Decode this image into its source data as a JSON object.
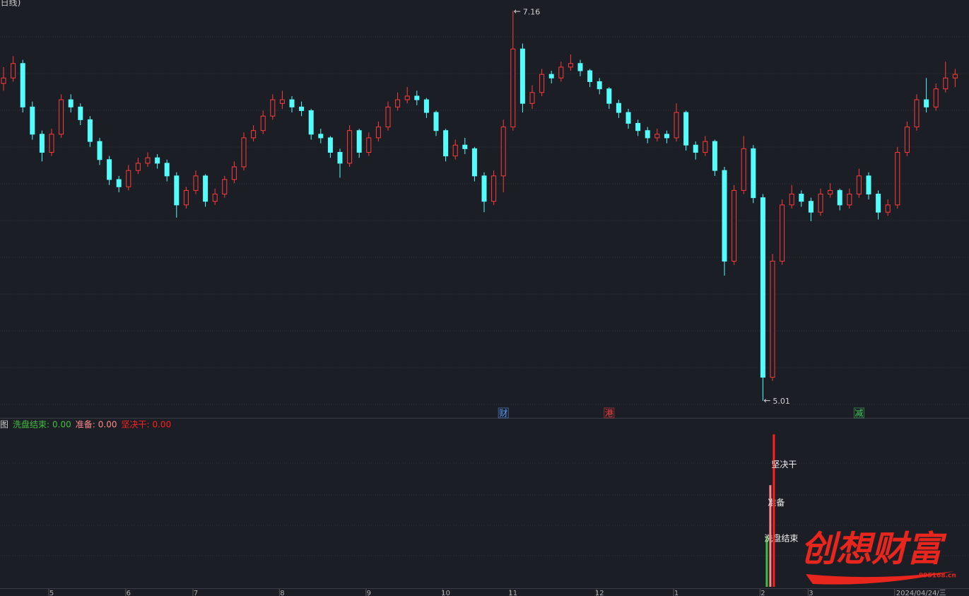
{
  "chart_data": [
    {
      "type": "candlestick",
      "title": "(日线)",
      "ylim": [
        4.92,
        7.22
      ],
      "up_color": "#ff3b3b",
      "down_color": "#54fcfc",
      "candles": [
        [
          6.76,
          6.85,
          6.72,
          6.79
        ],
        [
          6.79,
          6.91,
          6.77,
          6.87
        ],
        [
          6.87,
          6.89,
          6.6,
          6.63
        ],
        [
          6.63,
          6.66,
          6.45,
          6.48
        ],
        [
          6.48,
          6.5,
          6.33,
          6.38
        ],
        [
          6.38,
          6.51,
          6.36,
          6.48
        ],
        [
          6.48,
          6.7,
          6.46,
          6.67
        ],
        [
          6.67,
          6.7,
          6.6,
          6.63
        ],
        [
          6.63,
          6.65,
          6.53,
          6.56
        ],
        [
          6.56,
          6.58,
          6.41,
          6.44
        ],
        [
          6.44,
          6.46,
          6.31,
          6.34
        ],
        [
          6.34,
          6.36,
          6.2,
          6.23
        ],
        [
          6.23,
          6.25,
          6.16,
          6.19
        ],
        [
          6.19,
          6.31,
          6.17,
          6.28
        ],
        [
          6.28,
          6.35,
          6.26,
          6.32
        ],
        [
          6.32,
          6.38,
          6.3,
          6.35
        ],
        [
          6.35,
          6.37,
          6.29,
          6.32
        ],
        [
          6.32,
          6.34,
          6.22,
          6.25
        ],
        [
          6.25,
          6.27,
          6.02,
          6.09
        ],
        [
          6.09,
          6.19,
          6.07,
          6.17
        ],
        [
          6.17,
          6.28,
          6.15,
          6.25
        ],
        [
          6.25,
          6.26,
          6.08,
          6.11
        ],
        [
          6.11,
          6.18,
          6.09,
          6.15
        ],
        [
          6.15,
          6.25,
          6.13,
          6.23
        ],
        [
          6.23,
          6.33,
          6.21,
          6.3
        ],
        [
          6.3,
          6.49,
          6.28,
          6.46
        ],
        [
          6.46,
          6.53,
          6.44,
          6.5
        ],
        [
          6.5,
          6.61,
          6.48,
          6.58
        ],
        [
          6.58,
          6.7,
          6.56,
          6.67
        ],
        [
          6.65,
          6.72,
          6.62,
          6.67
        ],
        [
          6.67,
          6.69,
          6.6,
          6.63
        ],
        [
          6.63,
          6.66,
          6.58,
          6.61
        ],
        [
          6.61,
          6.62,
          6.45,
          6.48
        ],
        [
          6.48,
          6.51,
          6.43,
          6.46
        ],
        [
          6.46,
          6.47,
          6.35,
          6.38
        ],
        [
          6.38,
          6.4,
          6.24,
          6.32
        ],
        [
          6.32,
          6.53,
          6.3,
          6.5
        ],
        [
          6.5,
          6.51,
          6.35,
          6.38
        ],
        [
          6.38,
          6.49,
          6.36,
          6.46
        ],
        [
          6.46,
          6.55,
          6.44,
          6.52
        ],
        [
          6.52,
          6.66,
          6.5,
          6.63
        ],
        [
          6.63,
          6.71,
          6.61,
          6.67
        ],
        [
          6.67,
          6.74,
          6.65,
          6.69
        ],
        [
          6.69,
          6.72,
          6.64,
          6.67
        ],
        [
          6.67,
          6.68,
          6.57,
          6.6
        ],
        [
          6.6,
          6.61,
          6.47,
          6.5
        ],
        [
          6.5,
          6.51,
          6.33,
          6.36
        ],
        [
          6.36,
          6.45,
          6.34,
          6.42
        ],
        [
          6.42,
          6.46,
          6.37,
          6.4
        ],
        [
          6.4,
          6.41,
          6.22,
          6.25
        ],
        [
          6.25,
          6.27,
          6.05,
          6.11
        ],
        [
          6.11,
          6.28,
          6.09,
          6.25
        ],
        [
          6.25,
          6.56,
          6.16,
          6.52
        ],
        [
          6.52,
          7.16,
          6.5,
          6.95
        ],
        [
          6.95,
          6.98,
          6.6,
          6.65
        ],
        [
          6.65,
          6.75,
          6.62,
          6.71
        ],
        [
          6.71,
          6.84,
          6.69,
          6.81
        ],
        [
          6.81,
          6.83,
          6.76,
          6.79
        ],
        [
          6.79,
          6.88,
          6.77,
          6.85
        ],
        [
          6.85,
          6.92,
          6.83,
          6.87
        ],
        [
          6.87,
          6.89,
          6.8,
          6.83
        ],
        [
          6.83,
          6.84,
          6.74,
          6.77
        ],
        [
          6.77,
          6.79,
          6.7,
          6.73
        ],
        [
          6.73,
          6.74,
          6.62,
          6.65
        ],
        [
          6.65,
          6.67,
          6.57,
          6.6
        ],
        [
          6.6,
          6.62,
          6.51,
          6.54
        ],
        [
          6.54,
          6.56,
          6.47,
          6.5
        ],
        [
          6.5,
          6.52,
          6.43,
          6.46
        ],
        [
          6.46,
          6.51,
          6.44,
          6.48
        ],
        [
          6.48,
          6.5,
          6.43,
          6.46
        ],
        [
          6.46,
          6.65,
          6.44,
          6.6
        ],
        [
          6.6,
          6.61,
          6.39,
          6.42
        ],
        [
          6.42,
          6.44,
          6.34,
          6.38
        ],
        [
          6.38,
          6.47,
          6.36,
          6.44
        ],
        [
          6.44,
          6.45,
          6.25,
          6.28
        ],
        [
          6.28,
          6.3,
          5.7,
          5.78
        ],
        [
          5.78,
          6.2,
          5.76,
          6.17
        ],
        [
          6.17,
          6.47,
          6.15,
          6.4
        ],
        [
          6.4,
          6.42,
          6.1,
          6.13
        ],
        [
          6.13,
          6.15,
          5.01,
          5.14
        ],
        [
          5.14,
          5.82,
          5.12,
          5.78
        ],
        [
          5.78,
          6.12,
          5.76,
          6.09
        ],
        [
          6.09,
          6.2,
          6.07,
          6.15
        ],
        [
          6.15,
          6.17,
          6.08,
          6.11
        ],
        [
          6.11,
          6.13,
          6.0,
          6.05
        ],
        [
          6.05,
          6.18,
          6.03,
          6.15
        ],
        [
          6.15,
          6.21,
          6.13,
          6.17
        ],
        [
          6.17,
          6.18,
          6.06,
          6.09
        ],
        [
          6.09,
          6.18,
          6.07,
          6.15
        ],
        [
          6.15,
          6.29,
          6.13,
          6.25
        ],
        [
          6.25,
          6.27,
          6.12,
          6.15
        ],
        [
          6.15,
          6.17,
          6.01,
          6.05
        ],
        [
          6.05,
          6.12,
          6.03,
          6.09
        ],
        [
          6.09,
          6.41,
          6.07,
          6.38
        ],
        [
          6.38,
          6.55,
          6.36,
          6.52
        ],
        [
          6.52,
          6.7,
          6.5,
          6.67
        ],
        [
          6.67,
          6.79,
          6.6,
          6.63
        ],
        [
          6.63,
          6.76,
          6.61,
          6.73
        ],
        [
          6.73,
          6.88,
          6.71,
          6.79
        ],
        [
          6.79,
          6.84,
          6.74,
          6.81
        ]
      ],
      "categories": [
        null,
        null,
        null,
        null,
        null,
        "5",
        null,
        null,
        null,
        null,
        null,
        null,
        null,
        "6",
        null,
        null,
        null,
        null,
        null,
        null,
        "7",
        null,
        null,
        null,
        null,
        null,
        null,
        null,
        null,
        "8",
        null,
        null,
        null,
        null,
        null,
        null,
        null,
        null,
        "9",
        null,
        null,
        null,
        null,
        null,
        null,
        null,
        "10",
        null,
        null,
        null,
        null,
        null,
        null,
        "11",
        null,
        null,
        null,
        null,
        null,
        null,
        null,
        null,
        "12",
        null,
        null,
        null,
        null,
        null,
        null,
        null,
        "1",
        null,
        null,
        null,
        null,
        null,
        null,
        null,
        null,
        "2",
        null,
        null,
        null,
        null,
        "3",
        null,
        null,
        null,
        null,
        null,
        null,
        null,
        null,
        "2024/04/24/三",
        null,
        null,
        null,
        null,
        null,
        null
      ],
      "events": [
        {
          "label": "财",
          "index": 52,
          "color": "#5aa0ff"
        },
        {
          "label": "港",
          "index": 63,
          "color": "#ff4040"
        },
        {
          "label": "减",
          "index": 89,
          "color": "#3fcf5f"
        }
      ]
    },
    {
      "type": "bar",
      "title": "图",
      "x": [
        79
      ],
      "ylim": [
        0,
        3.2
      ],
      "series": [
        {
          "name": "洗盘结束",
          "color": "#3fbf3f",
          "values": [
            1
          ],
          "latest": {
            "value": 0,
            "label": "0.00"
          }
        },
        {
          "name": "准备",
          "color": "#ff8a8a",
          "values": [
            2
          ],
          "latest": {
            "value": 0,
            "label": "0.00"
          }
        },
        {
          "name": "坚决干",
          "color": "#ff2020",
          "values": [
            3
          ],
          "latest": {
            "value": 0,
            "label": "0.00"
          }
        }
      ]
    }
  ],
  "watermark": {
    "text": "创想财富",
    "url": "995168.cn"
  }
}
